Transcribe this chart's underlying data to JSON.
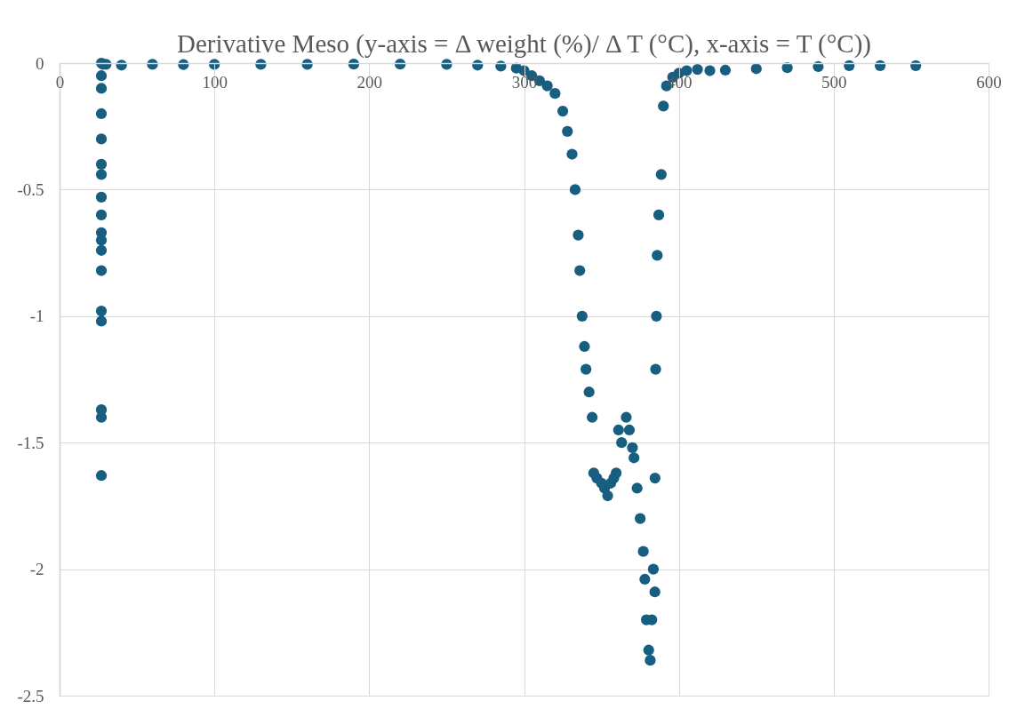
{
  "chart_data": {
    "type": "scatter",
    "title": "Derivative  Meso (y-axis = Δ weight (%)/ Δ T (°C), x-axis = T (°C))",
    "x": [
      27,
      27,
      27,
      27,
      27,
      27,
      27,
      27,
      27,
      27,
      27,
      27,
      27,
      27,
      27,
      27,
      27,
      27,
      28,
      30,
      40,
      60,
      80,
      100,
      130,
      160,
      190,
      220,
      250,
      270,
      285,
      295,
      300,
      305,
      310,
      315,
      320,
      325,
      328,
      331,
      333,
      335,
      336,
      337.5,
      339,
      340,
      342,
      344,
      345,
      347,
      350,
      352,
      354,
      356,
      358,
      359.5,
      361,
      363,
      366,
      368,
      370,
      371,
      373,
      375,
      377,
      378,
      379,
      380.5,
      381.5,
      382.5,
      383.5,
      384.5,
      384.6,
      385,
      385.5,
      386,
      387,
      388.6,
      390,
      392,
      396,
      400,
      405,
      412,
      420,
      430,
      450,
      470,
      490,
      510,
      530,
      553
    ],
    "series": [
      {
        "color": "#175e80",
        "values": [
          0,
          -0.1,
          -0.2,
          -0.3,
          -0.4,
          -0.44,
          -0.53,
          -0.6,
          -0.67,
          -0.7,
          -0.74,
          -0.82,
          -0.98,
          -1.02,
          -1.37,
          -1.4,
          -1.63,
          -0.05,
          -0.005,
          -0.005,
          -0.008,
          -0.005,
          -0.006,
          -0.005,
          -0.005,
          -0.005,
          -0.004,
          -0.004,
          -0.005,
          -0.008,
          -0.012,
          -0.02,
          -0.03,
          -0.05,
          -0.07,
          -0.09,
          -0.12,
          -0.19,
          -0.27,
          -0.36,
          -0.5,
          -0.68,
          -0.82,
          -1.0,
          -1.12,
          -1.21,
          -1.3,
          -1.4,
          -1.62,
          -1.64,
          -1.66,
          -1.68,
          -1.71,
          -1.66,
          -1.64,
          -1.62,
          -1.45,
          -1.5,
          -1.4,
          -1.45,
          -1.52,
          -1.56,
          -1.68,
          -1.8,
          -1.93,
          -2.04,
          -2.2,
          -2.32,
          -2.36,
          -2.2,
          -2.0,
          -2.09,
          -1.64,
          -1.21,
          -1.0,
          -0.76,
          -0.6,
          -0.44,
          -0.17,
          -0.09,
          -0.056,
          -0.04,
          -0.03,
          -0.025,
          -0.03,
          -0.028,
          -0.022,
          -0.018,
          -0.014,
          -0.01,
          -0.01,
          -0.01
        ]
      }
    ],
    "xlim": [
      0,
      600
    ],
    "xticks": [
      0,
      100,
      200,
      300,
      400,
      500,
      600
    ],
    "ylim": [
      -2.5,
      0
    ],
    "yticks": [
      -2.5,
      -2,
      -1.5,
      -1,
      -0.5,
      0
    ],
    "grid": true,
    "marker": "circle"
  }
}
